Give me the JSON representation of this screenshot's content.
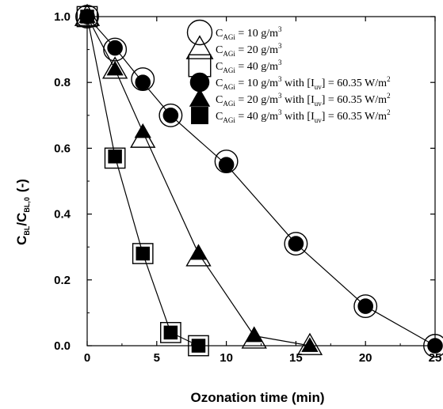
{
  "chart_data": {
    "type": "scatter",
    "xlabel": "Ozonation time  (min)",
    "ylabel_parts": {
      "main1": "C",
      "sub1": "BL",
      "main2": "/C",
      "sub2": "BL,0",
      "unit": "(-)"
    },
    "xlim": [
      0,
      25
    ],
    "ylim": [
      0,
      1.0
    ],
    "x_ticks": [
      "0",
      "5",
      "10",
      "15",
      "20",
      "25"
    ],
    "y_ticks": [
      "0.0",
      "0.2",
      "0.4",
      "0.6",
      "0.8",
      "1.0"
    ],
    "grid": false,
    "legend_position": "top-right",
    "series": [
      {
        "marker": "circle-open",
        "legend": {
          "c": "C",
          "sub": "AGi",
          "eq": " = 10 g/m",
          "sup": "3",
          "uv": "",
          "uvsub": "",
          "uvend": "",
          "uvsup": ""
        },
        "x": [
          0,
          2,
          4,
          6,
          10,
          15,
          20,
          25
        ],
        "y": [
          1.0,
          0.9,
          0.81,
          0.7,
          0.56,
          0.31,
          0.12,
          0.0
        ],
        "connected": false
      },
      {
        "marker": "triangle-open",
        "legend": {
          "c": "C",
          "sub": "AGi",
          "eq": " = 20 g/m",
          "sup": "3",
          "uv": "",
          "uvsub": "",
          "uvend": "",
          "uvsup": ""
        },
        "x": [
          0,
          2,
          4,
          8,
          12,
          16
        ],
        "y": [
          1.0,
          0.84,
          0.63,
          0.27,
          0.02,
          0.0
        ],
        "connected": false
      },
      {
        "marker": "square-open",
        "legend": {
          "c": "C",
          "sub": "AGi",
          "eq": " = 40 g/m",
          "sup": "3",
          "uv": "",
          "uvsub": "",
          "uvend": "",
          "uvsup": ""
        },
        "x": [
          0,
          2,
          4,
          6,
          8
        ],
        "y": [
          1.0,
          0.57,
          0.28,
          0.04,
          0.0
        ],
        "connected": false
      },
      {
        "marker": "circle-filled",
        "legend": {
          "c": "C",
          "sub": "AGi",
          "eq": " = 10 g/m",
          "sup": "3",
          "uv": " with [I",
          "uvsub": "uv",
          "uvend": "] = 60.35 W/m",
          "uvsup": "2"
        },
        "x": [
          0,
          2,
          4,
          6,
          10,
          15,
          20,
          25
        ],
        "y": [
          1.0,
          0.905,
          0.8,
          0.7,
          0.55,
          0.31,
          0.12,
          0.0
        ],
        "connected": true
      },
      {
        "marker": "triangle-filled",
        "legend": {
          "c": "C",
          "sub": "AGi",
          "eq": " = 20 g/m",
          "sup": "3",
          "uv": " with [I",
          "uvsub": "uv",
          "uvend": "] = 60.35 W/m",
          "uvsup": "2"
        },
        "x": [
          0,
          2,
          4,
          8,
          12,
          16
        ],
        "y": [
          1.0,
          0.84,
          0.65,
          0.28,
          0.03,
          0.0
        ],
        "connected": true
      },
      {
        "marker": "square-filled",
        "legend": {
          "c": "C",
          "sub": "AGi",
          "eq": " = 40 g/m",
          "sup": "3",
          "uv": " with [I",
          "uvsub": "uv",
          "uvend": "] = 60.35 W/m",
          "uvsup": "2"
        },
        "x": [
          0,
          2,
          4,
          6,
          8
        ],
        "y": [
          1.0,
          0.575,
          0.28,
          0.04,
          0.0
        ],
        "connected": true
      }
    ]
  }
}
